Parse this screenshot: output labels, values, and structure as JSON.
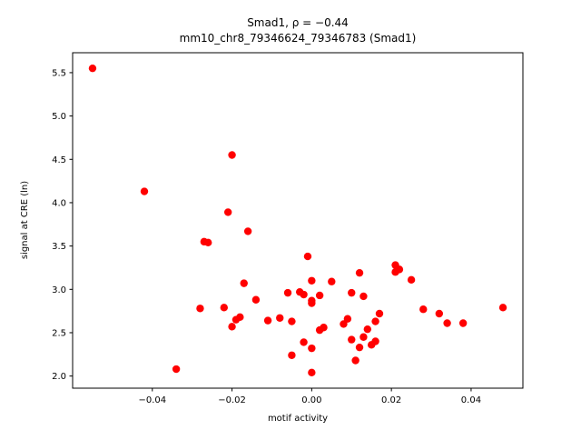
{
  "chart_data": {
    "type": "scatter",
    "title": "Smad1, ρ = −0.44",
    "subtitle": "mm10_chr8_79346624_79346783 (Smad1)",
    "xlabel": "motif activity",
    "ylabel": "signal at CRE (ln)",
    "xlim": [
      -0.06,
      0.053
    ],
    "ylim": [
      1.86,
      5.73
    ],
    "xticks": [
      -0.04,
      -0.02,
      0.0,
      0.02,
      0.04
    ],
    "xtick_labels": [
      "−0.04",
      "−0.02",
      "0.00",
      "0.02",
      "0.04"
    ],
    "yticks": [
      2.0,
      2.5,
      3.0,
      3.5,
      4.0,
      4.5,
      5.0,
      5.5
    ],
    "ytick_labels": [
      "2.0",
      "2.5",
      "3.0",
      "3.5",
      "4.0",
      "4.5",
      "5.0",
      "5.5"
    ],
    "marker_color": "#ff0000",
    "marker_radius": 4.2,
    "grid": false,
    "legend": null,
    "points": [
      [
        -0.055,
        5.55
      ],
      [
        -0.042,
        4.13
      ],
      [
        -0.034,
        2.08
      ],
      [
        -0.028,
        2.78
      ],
      [
        -0.027,
        3.55
      ],
      [
        -0.026,
        3.54
      ],
      [
        -0.022,
        2.79
      ],
      [
        -0.021,
        3.89
      ],
      [
        -0.02,
        4.55
      ],
      [
        -0.02,
        2.57
      ],
      [
        -0.019,
        2.65
      ],
      [
        -0.018,
        2.68
      ],
      [
        -0.017,
        3.07
      ],
      [
        -0.016,
        3.67
      ],
      [
        -0.014,
        2.88
      ],
      [
        -0.011,
        2.64
      ],
      [
        -0.008,
        2.67
      ],
      [
        -0.006,
        2.96
      ],
      [
        -0.005,
        2.63
      ],
      [
        -0.005,
        2.24
      ],
      [
        -0.003,
        2.97
      ],
      [
        -0.002,
        2.94
      ],
      [
        -0.002,
        2.39
      ],
      [
        -0.001,
        3.38
      ],
      [
        0.0,
        3.1
      ],
      [
        0.0,
        2.87
      ],
      [
        0.0,
        2.84
      ],
      [
        0.0,
        2.32
      ],
      [
        0.0,
        2.04
      ],
      [
        0.002,
        2.93
      ],
      [
        0.002,
        2.53
      ],
      [
        0.003,
        2.56
      ],
      [
        0.005,
        3.09
      ],
      [
        0.008,
        2.6
      ],
      [
        0.009,
        2.66
      ],
      [
        0.01,
        2.96
      ],
      [
        0.01,
        2.42
      ],
      [
        0.011,
        2.18
      ],
      [
        0.012,
        3.19
      ],
      [
        0.012,
        2.33
      ],
      [
        0.013,
        2.45
      ],
      [
        0.013,
        2.92
      ],
      [
        0.014,
        2.54
      ],
      [
        0.015,
        2.36
      ],
      [
        0.016,
        2.4
      ],
      [
        0.016,
        2.63
      ],
      [
        0.017,
        2.72
      ],
      [
        0.021,
        3.28
      ],
      [
        0.021,
        3.2
      ],
      [
        0.022,
        3.23
      ],
      [
        0.025,
        3.11
      ],
      [
        0.028,
        2.77
      ],
      [
        0.032,
        2.72
      ],
      [
        0.034,
        2.61
      ],
      [
        0.038,
        2.61
      ],
      [
        0.048,
        2.79
      ]
    ]
  }
}
